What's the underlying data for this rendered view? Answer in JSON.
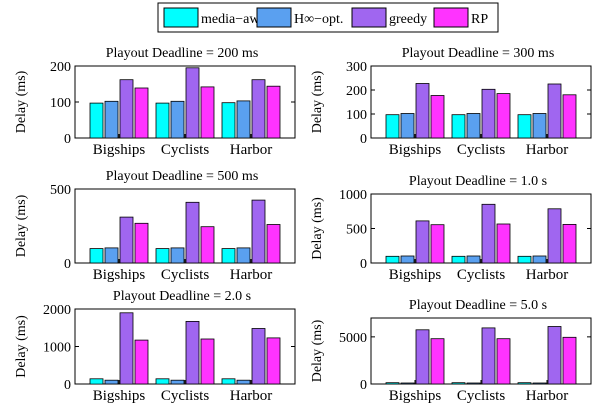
{
  "legend": [
    {
      "label": "media−aware",
      "color": "#00ffff"
    },
    {
      "label": "H∞−opt.",
      "color": "#5aa0f0"
    },
    {
      "label": "greedy",
      "color": "#a066f0"
    },
    {
      "label": "RP",
      "color": "#ff33ff"
    }
  ],
  "chart_data": [
    {
      "type": "bar",
      "title": "Playout Deadline = 200 ms",
      "ylabel": "Delay (ms)",
      "categories": [
        "Bigships",
        "Cyclists",
        "Harbor"
      ],
      "series": [
        {
          "name": "media−aware",
          "color": "#00ffff",
          "values": [
            97,
            97,
            98
          ]
        },
        {
          "name": "H∞−opt.",
          "color": "#5aa0f0",
          "values": [
            102,
            102,
            103
          ]
        },
        {
          "name": "greedy",
          "color": "#a066f0",
          "values": [
            162,
            195,
            162
          ]
        },
        {
          "name": "RP",
          "color": "#ff33ff",
          "values": [
            139,
            142,
            144
          ]
        }
      ],
      "ylim": [
        0,
        200
      ],
      "yticks": [
        "0",
        "100",
        "200"
      ]
    },
    {
      "type": "bar",
      "title": "Playout Deadline = 300 ms",
      "ylabel": "Delay (ms)",
      "categories": [
        "Bigships",
        "Cyclists",
        "Harbor"
      ],
      "series": [
        {
          "name": "media−aware",
          "color": "#00ffff",
          "values": [
            97,
            97,
            97
          ]
        },
        {
          "name": "H∞−opt.",
          "color": "#5aa0f0",
          "values": [
            102,
            102,
            102
          ]
        },
        {
          "name": "greedy",
          "color": "#a066f0",
          "values": [
            227,
            203,
            225
          ]
        },
        {
          "name": "RP",
          "color": "#ff33ff",
          "values": [
            177,
            185,
            180
          ]
        }
      ],
      "ylim": [
        0,
        300
      ],
      "yticks": [
        "0",
        "100",
        "200",
        "300"
      ]
    },
    {
      "type": "bar",
      "title": "Playout Deadline = 500 ms",
      "ylabel": "Delay (ms)",
      "categories": [
        "Bigships",
        "Cyclists",
        "Harbor"
      ],
      "series": [
        {
          "name": "media−aware",
          "color": "#00ffff",
          "values": [
            97,
            97,
            97
          ]
        },
        {
          "name": "H∞−opt.",
          "color": "#5aa0f0",
          "values": [
            102,
            102,
            102
          ]
        },
        {
          "name": "greedy",
          "color": "#a066f0",
          "values": [
            310,
            410,
            425
          ]
        },
        {
          "name": "RP",
          "color": "#ff33ff",
          "values": [
            268,
            245,
            260
          ]
        }
      ],
      "ylim": [
        0,
        500
      ],
      "yticks": [
        "0",
        "500"
      ]
    },
    {
      "type": "bar",
      "title": "Playout Deadline = 1.0 s",
      "ylabel": "Delay (ms)",
      "categories": [
        "Bigships",
        "Cyclists",
        "Harbor"
      ],
      "series": [
        {
          "name": "media−aware",
          "color": "#00ffff",
          "values": [
            97,
            97,
            97
          ]
        },
        {
          "name": "H∞−opt.",
          "color": "#5aa0f0",
          "values": [
            102,
            102,
            102
          ]
        },
        {
          "name": "greedy",
          "color": "#a066f0",
          "values": [
            610,
            850,
            785
          ]
        },
        {
          "name": "RP",
          "color": "#ff33ff",
          "values": [
            555,
            565,
            560
          ]
        }
      ],
      "ylim": [
        0,
        1000
      ],
      "yticks": [
        "0",
        "500",
        "1000"
      ]
    },
    {
      "type": "bar",
      "title": "Playout Deadline = 2.0 s",
      "ylabel": "Delay (ms)",
      "categories": [
        "Bigships",
        "Cyclists",
        "Harbor"
      ],
      "series": [
        {
          "name": "media−aware",
          "color": "#00ffff",
          "values": [
            140,
            140,
            140
          ]
        },
        {
          "name": "H∞−opt.",
          "color": "#5aa0f0",
          "values": [
            102,
            102,
            102
          ]
        },
        {
          "name": "greedy",
          "color": "#a066f0",
          "values": [
            1900,
            1670,
            1480
          ]
        },
        {
          "name": "RP",
          "color": "#ff33ff",
          "values": [
            1170,
            1200,
            1230
          ]
        }
      ],
      "ylim": [
        0,
        2000
      ],
      "yticks": [
        "0",
        "1000",
        "2000"
      ]
    },
    {
      "type": "bar",
      "title": "Playout Deadline = 5.0 s",
      "ylabel": "Delay (ms)",
      "categories": [
        "Bigships",
        "Cyclists",
        "Harbor"
      ],
      "series": [
        {
          "name": "media−aware",
          "color": "#00ffff",
          "values": [
            140,
            140,
            140
          ]
        },
        {
          "name": "H∞−opt.",
          "color": "#5aa0f0",
          "values": [
            102,
            102,
            102
          ]
        },
        {
          "name": "greedy",
          "color": "#a066f0",
          "values": [
            5750,
            5950,
            6100
          ]
        },
        {
          "name": "RP",
          "color": "#ff33ff",
          "values": [
            4800,
            4800,
            4950
          ]
        }
      ],
      "ylim": [
        0,
        7000
      ],
      "yticks": [
        "0",
        "5000"
      ]
    }
  ]
}
